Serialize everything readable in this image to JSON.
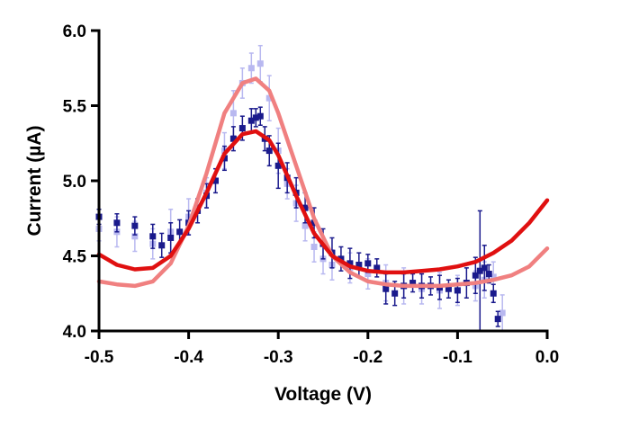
{
  "chart_data": {
    "type": "scatter",
    "title": "",
    "xlabel": "Voltage (V)",
    "ylabel": "Current (µA)",
    "xlim": [
      -0.5,
      0.0
    ],
    "ylim": [
      4.0,
      6.0
    ],
    "xticks": [
      -0.5,
      -0.4,
      -0.3,
      -0.2,
      -0.1,
      0.0
    ],
    "xtick_labels": [
      "-0.5",
      "-0.4",
      "-0.3",
      "-0.2",
      "-0.1",
      "0.0"
    ],
    "yticks": [
      4.0,
      4.5,
      5.0,
      5.5,
      6.0
    ],
    "ytick_labels": [
      "4.0",
      "4.5",
      "5.0",
      "5.5",
      "6.0"
    ],
    "grid": false,
    "legend": "none",
    "series": [
      {
        "kind": "scatter-errorbars",
        "color": "#b8b8f0",
        "x": [
          -0.5,
          -0.48,
          -0.46,
          -0.44,
          -0.42,
          -0.4,
          -0.38,
          -0.36,
          -0.35,
          -0.34,
          -0.33,
          -0.32,
          -0.31,
          -0.3,
          -0.29,
          -0.28,
          -0.27,
          -0.26,
          -0.25,
          -0.24,
          -0.22,
          -0.2,
          -0.18,
          -0.16,
          -0.14,
          -0.12,
          -0.1,
          -0.08,
          -0.07,
          -0.06,
          -0.05
        ],
        "y": [
          4.68,
          4.66,
          4.63,
          4.58,
          4.66,
          4.76,
          4.92,
          5.2,
          5.45,
          5.65,
          5.75,
          5.78,
          5.55,
          5.2,
          4.98,
          4.85,
          4.7,
          4.56,
          4.48,
          4.44,
          4.42,
          4.38,
          4.32,
          4.3,
          4.28,
          4.27,
          4.27,
          4.3,
          4.34,
          4.36,
          4.12
        ],
        "err": [
          0.08,
          0.1,
          0.1,
          0.1,
          0.15,
          0.12,
          0.1,
          0.12,
          0.15,
          0.1,
          0.1,
          0.12,
          0.15,
          0.15,
          0.1,
          0.12,
          0.1,
          0.1,
          0.1,
          0.1,
          0.1,
          0.1,
          0.12,
          0.12,
          0.1,
          0.12,
          0.1,
          0.1,
          0.12,
          0.1,
          0.12
        ]
      },
      {
        "kind": "scatter-errorbars",
        "color": "#1a1a8c",
        "x": [
          -0.5,
          -0.48,
          -0.46,
          -0.44,
          -0.43,
          -0.42,
          -0.41,
          -0.4,
          -0.39,
          -0.38,
          -0.37,
          -0.36,
          -0.35,
          -0.34,
          -0.33,
          -0.325,
          -0.32,
          -0.315,
          -0.31,
          -0.3,
          -0.29,
          -0.28,
          -0.27,
          -0.26,
          -0.25,
          -0.24,
          -0.23,
          -0.22,
          -0.21,
          -0.2,
          -0.19,
          -0.18,
          -0.17,
          -0.16,
          -0.15,
          -0.14,
          -0.13,
          -0.12,
          -0.11,
          -0.1,
          -0.09,
          -0.08,
          -0.075,
          -0.07,
          -0.065,
          -0.06,
          -0.055
        ],
        "y": [
          4.76,
          4.72,
          4.7,
          4.63,
          4.57,
          4.62,
          4.66,
          4.72,
          4.8,
          4.9,
          5.0,
          5.15,
          5.28,
          5.35,
          5.4,
          5.42,
          5.43,
          5.28,
          5.2,
          5.1,
          5.02,
          4.92,
          4.82,
          4.72,
          4.58,
          4.52,
          4.48,
          4.45,
          4.44,
          4.45,
          4.42,
          4.28,
          4.25,
          4.3,
          4.32,
          4.3,
          4.3,
          4.29,
          4.28,
          4.27,
          4.32,
          4.37,
          4.4,
          4.42,
          4.38,
          4.25,
          4.08
        ],
        "err": [
          0.05,
          0.06,
          0.06,
          0.08,
          0.08,
          0.1,
          0.08,
          0.08,
          0.08,
          0.08,
          0.08,
          0.08,
          0.08,
          0.08,
          0.08,
          0.06,
          0.06,
          0.08,
          0.1,
          0.15,
          0.1,
          0.1,
          0.1,
          0.1,
          0.1,
          0.1,
          0.08,
          0.1,
          0.08,
          0.06,
          0.06,
          0.1,
          0.08,
          0.08,
          0.06,
          0.08,
          0.06,
          0.08,
          0.06,
          0.08,
          0.1,
          0.12,
          0.4,
          0.15,
          0.06,
          0.06,
          0.05
        ]
      },
      {
        "kind": "line",
        "color": "#f08080",
        "x": [
          -0.5,
          -0.48,
          -0.46,
          -0.44,
          -0.42,
          -0.4,
          -0.38,
          -0.36,
          -0.34,
          -0.325,
          -0.31,
          -0.3,
          -0.28,
          -0.26,
          -0.24,
          -0.22,
          -0.2,
          -0.18,
          -0.16,
          -0.14,
          -0.12,
          -0.1,
          -0.08,
          -0.06,
          -0.04,
          -0.02,
          0.0
        ],
        "y": [
          4.33,
          4.31,
          4.3,
          4.33,
          4.45,
          4.7,
          5.05,
          5.45,
          5.65,
          5.68,
          5.6,
          5.45,
          5.1,
          4.75,
          4.5,
          4.39,
          4.33,
          4.31,
          4.3,
          4.3,
          4.3,
          4.31,
          4.32,
          4.34,
          4.37,
          4.43,
          4.55
        ]
      },
      {
        "kind": "line",
        "color": "#e01010",
        "x": [
          -0.5,
          -0.48,
          -0.46,
          -0.44,
          -0.42,
          -0.4,
          -0.38,
          -0.36,
          -0.34,
          -0.325,
          -0.31,
          -0.3,
          -0.28,
          -0.26,
          -0.24,
          -0.22,
          -0.2,
          -0.18,
          -0.16,
          -0.14,
          -0.12,
          -0.1,
          -0.08,
          -0.06,
          -0.04,
          -0.02,
          0.0
        ],
        "y": [
          4.51,
          4.44,
          4.41,
          4.42,
          4.5,
          4.68,
          4.92,
          5.18,
          5.31,
          5.33,
          5.27,
          5.17,
          4.9,
          4.65,
          4.5,
          4.43,
          4.4,
          4.39,
          4.39,
          4.4,
          4.41,
          4.43,
          4.46,
          4.52,
          4.6,
          4.72,
          4.87
        ]
      }
    ]
  }
}
